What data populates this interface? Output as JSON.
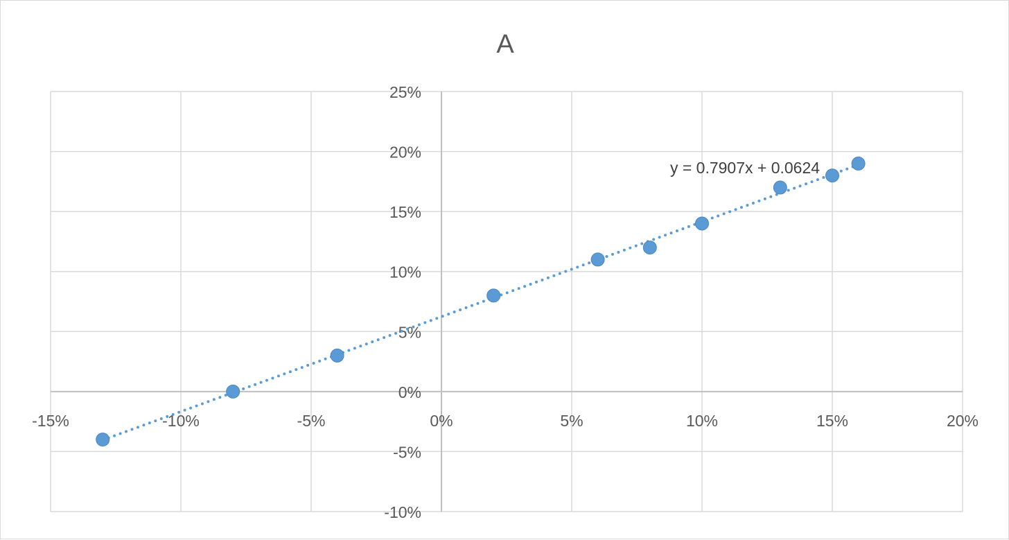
{
  "chart_data": {
    "type": "scatter",
    "title": "A",
    "colors": {
      "series": "#5b9bd5",
      "grid": "#d9d9d9",
      "axis": "#bfbfbf",
      "text": "#595959"
    },
    "xlim": [
      -0.15,
      0.2
    ],
    "ylim": [
      -0.1,
      0.25
    ],
    "x_ticks": [
      -0.15,
      -0.1,
      -0.05,
      0.0,
      0.05,
      0.1,
      0.15,
      0.2
    ],
    "y_ticks": [
      -0.1,
      -0.05,
      0.0,
      0.05,
      0.1,
      0.15,
      0.2,
      0.25
    ],
    "x_tick_labels": [
      "-15%",
      "-10%",
      "-5%",
      "0%",
      "5%",
      "10%",
      "15%",
      "20%"
    ],
    "y_tick_labels": [
      "-10%",
      "-5%",
      "0%",
      "5%",
      "10%",
      "15%",
      "20%",
      "25%"
    ],
    "grid": true,
    "series": [
      {
        "x": [
          -0.13,
          -0.08,
          -0.04,
          0.02,
          0.06,
          0.08,
          0.1,
          0.13,
          0.15,
          0.16
        ],
        "y": [
          -0.04,
          0.0,
          0.03,
          0.08,
          0.11,
          0.12,
          0.14,
          0.17,
          0.18,
          0.19
        ]
      }
    ],
    "trendline": {
      "type": "linear",
      "style": "dotted",
      "slope": 0.7907,
      "intercept": 0.0624,
      "x_range": [
        -0.13,
        0.16
      ],
      "equation_label": "y = 0.7907x + 0.0624"
    }
  }
}
